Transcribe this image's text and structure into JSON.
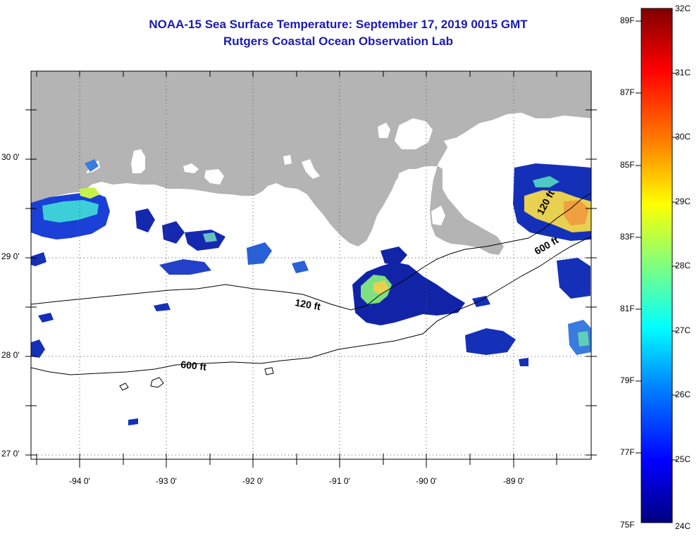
{
  "title": {
    "line1": "NOAA-15 Sea Surface Temperature:  September 17, 2019 0015 GMT",
    "line2": "Rutgers Coastal Ocean Observation Lab"
  },
  "map": {
    "land_color": "#b4b4b4",
    "water_color": "#ffffff",
    "lat_labels": [
      "30 0'",
      "29 0'",
      "28 0'",
      "27 0'"
    ],
    "lon_labels": [
      "-94 0'",
      "-93 0'",
      "-92 0'",
      "-91 0'",
      "-90 0'",
      "-89 0'"
    ],
    "contours": {
      "isobath_120": "120 ft",
      "isobath_600": "600 ft",
      "isobath_600_east": "600 ft",
      "isobath_120_east": "120 ft"
    }
  },
  "colorbar": {
    "fahrenheit_labels": [
      "89F",
      "87F",
      "85F",
      "83F",
      "81F",
      "79F",
      "77F",
      "75F"
    ],
    "celsius_labels": [
      "32C",
      "31C",
      "30C",
      "29C",
      "28C",
      "27C",
      "26C",
      "25C",
      "24C"
    ],
    "color_stops": [
      "#00007f",
      "#0000ff",
      "#007fff",
      "#00ffff",
      "#7fff7f",
      "#ffff00",
      "#ff7f00",
      "#ff0000",
      "#7f0000"
    ]
  }
}
